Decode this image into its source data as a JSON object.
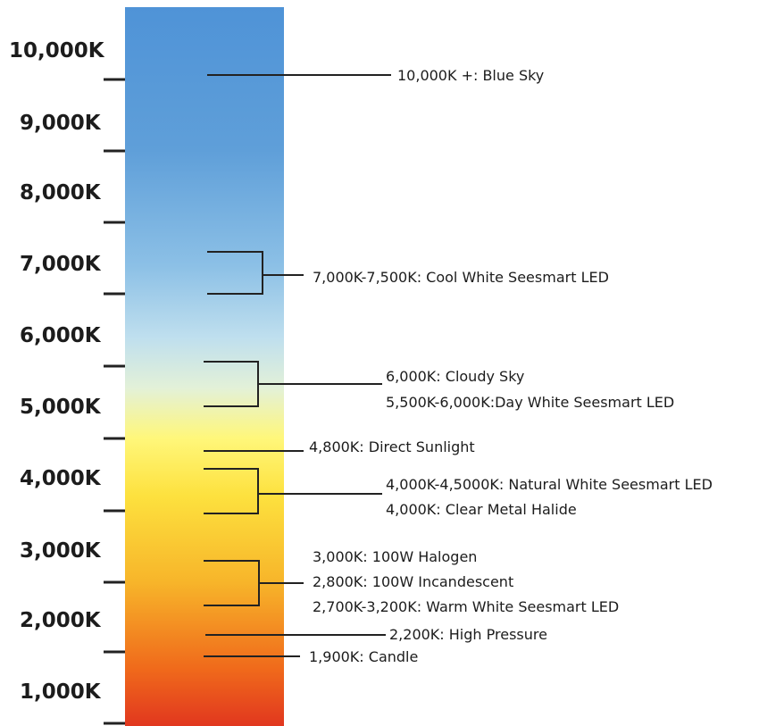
{
  "scale": {
    "unit": "K",
    "min": 0,
    "max": 11000,
    "labels": [
      {
        "value": 10000,
        "text": "10,000K"
      },
      {
        "value": 9000,
        "text": "9,000K"
      },
      {
        "value": 8000,
        "text": "8,000K"
      },
      {
        "value": 7000,
        "text": "7,000K"
      },
      {
        "value": 6000,
        "text": "6,000K"
      },
      {
        "value": 5000,
        "text": "5,000K"
      },
      {
        "value": 4000,
        "text": "4,000K"
      },
      {
        "value": 3000,
        "text": "3,000K"
      },
      {
        "value": 2000,
        "text": "2,000K"
      },
      {
        "value": 1000,
        "text": "1,000K"
      }
    ],
    "gradient_colors": [
      "#e1371f",
      "#f06a1b",
      "#f7b52a",
      "#fde13e",
      "#fff77a",
      "#e3f1d8",
      "#bfdfee",
      "#8cc0e6",
      "#5f9fd9",
      "#4f93d7"
    ]
  },
  "annotations": [
    {
      "id": "blue-sky",
      "lines": [
        "10,000K +: Blue Sky"
      ]
    },
    {
      "id": "cool-white",
      "lines": [
        "7,000K-7,500K: Cool White Seesmart LED"
      ]
    },
    {
      "id": "cloudy-day-white",
      "lines": [
        "6,000K: Cloudy Sky",
        "5,500K-6,000K:Day White Seesmart LED"
      ]
    },
    {
      "id": "direct-sunlight",
      "lines": [
        "4,800K: Direct Sunlight"
      ]
    },
    {
      "id": "natural-white-metal-halide",
      "lines": [
        "4,000K-4,5000K: Natural White Seesmart LED",
        "4,000K: Clear Metal Halide"
      ]
    },
    {
      "id": "halogen-incandescent-warm",
      "lines": [
        "3,000K: 100W Halogen",
        "2,800K: 100W Incandescent",
        "2,700K-3,200K: Warm White Seesmart LED"
      ]
    },
    {
      "id": "high-pressure",
      "lines": [
        "2,200K: High Pressure"
      ]
    },
    {
      "id": "candle",
      "lines": [
        "1,900K: Candle"
      ]
    }
  ]
}
